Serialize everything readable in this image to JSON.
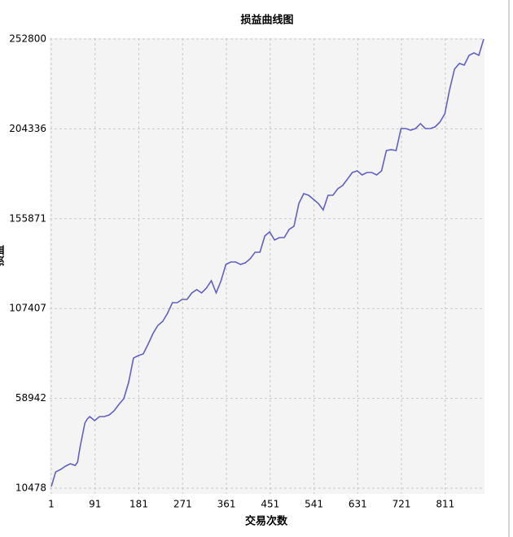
{
  "chart_data": {
    "type": "line",
    "title": "损益曲线图",
    "x_label": "交易次数",
    "y_label": "损益",
    "x": [
      1,
      10,
      20,
      30,
      40,
      50,
      55,
      60,
      65,
      70,
      75,
      80,
      90,
      100,
      110,
      120,
      130,
      140,
      150,
      160,
      170,
      180,
      190,
      200,
      210,
      220,
      230,
      240,
      250,
      260,
      270,
      280,
      290,
      300,
      310,
      320,
      330,
      340,
      350,
      360,
      370,
      380,
      390,
      400,
      410,
      420,
      430,
      440,
      450,
      460,
      470,
      480,
      490,
      500,
      510,
      520,
      530,
      540,
      550,
      560,
      570,
      580,
      590,
      600,
      610,
      620,
      630,
      640,
      650,
      660,
      670,
      680,
      690,
      700,
      710,
      720,
      730,
      740,
      750,
      760,
      770,
      780,
      790,
      800,
      810,
      820,
      830,
      840,
      850,
      860,
      870,
      880,
      890
    ],
    "series": [
      {
        "name": "损益",
        "color": "#6060c8",
        "values": [
          11356,
          19258,
          20575,
          22331,
          23648,
          22770,
          24526,
          32428,
          39013,
          45598,
          47793,
          49110,
          46915,
          49110,
          49110,
          49988,
          52183,
          55695,
          58768,
          67548,
          80718,
          82035,
          82913,
          88181,
          93888,
          98278,
          100473,
          104863,
          110570,
          110570,
          112326,
          112326,
          115838,
          117594,
          115838,
          118472,
          122423,
          115838,
          122423,
          131203,
          132520,
          132520,
          131203,
          132081,
          134276,
          137788,
          137788,
          146568,
          148763,
          144373,
          145690,
          145690,
          150080,
          151836,
          164128,
          169396,
          168518,
          166323,
          164128,
          160616,
          168518,
          168518,
          172030,
          173786,
          177298,
          180810,
          181688,
          179493,
          180810,
          180810,
          179493,
          181688,
          192663,
          193101,
          192663,
          204516,
          204516,
          203638,
          204516,
          207150,
          204516,
          204516,
          205394,
          208028,
          212418,
          225588,
          236563,
          239636,
          238758,
          244026,
          245343,
          244026,
          252800
        ]
      }
    ],
    "xlim": [
      1,
      890
    ],
    "ylim": [
      10478,
      252800
    ],
    "xticks": [
      1,
      91,
      181,
      271,
      361,
      451,
      541,
      631,
      721,
      811
    ],
    "yticks": [
      10478,
      58942,
      107407,
      155871,
      204336,
      252800
    ],
    "grid": true
  }
}
